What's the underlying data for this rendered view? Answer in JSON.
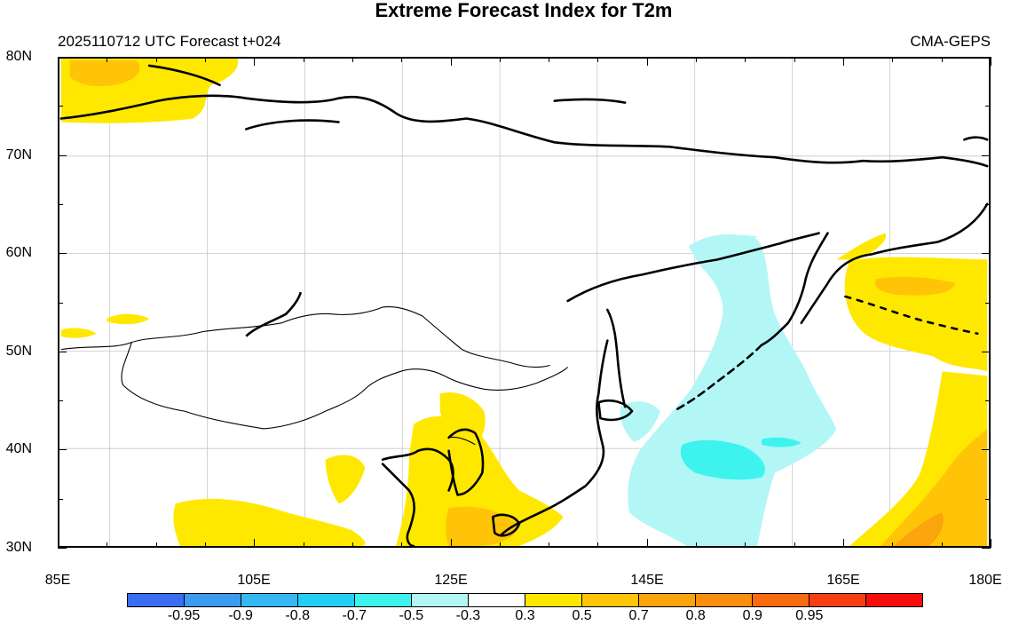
{
  "title": "Extreme Forecast Index for T2m",
  "subtitle_left": "2025110712 UTC Forecast t+024",
  "subtitle_right": "CMA-GEPS",
  "map": {
    "lon_min": 85,
    "lon_max": 180,
    "lat_min": 30,
    "lat_max": 80,
    "lat_labels": [
      "80N",
      "70N",
      "60N",
      "50N",
      "40N",
      "30N"
    ],
    "lon_labels": [
      "85E",
      "105E",
      "125E",
      "145E",
      "165E",
      "180E"
    ],
    "graticule_lat": [
      40,
      50,
      60,
      70
    ],
    "graticule_lon": [
      90,
      100,
      110,
      120,
      130,
      140,
      150,
      160,
      170
    ]
  },
  "colorbar": {
    "colors": [
      "#3a6ef0",
      "#3a9bef",
      "#36b7f2",
      "#22cef6",
      "#3ef3ee",
      "#b2f7f6",
      "#ffffff",
      "#ffe800",
      "#ffc407",
      "#fba40c",
      "#fb8d0f",
      "#f86a10",
      "#f53f13",
      "#f40e0e"
    ],
    "labels": [
      "-0.95",
      "-0.9",
      "-0.8",
      "-0.7",
      "-0.5",
      "-0.3",
      "0.3",
      "0.5",
      "0.7",
      "0.8",
      "0.9",
      "0.95"
    ]
  }
}
